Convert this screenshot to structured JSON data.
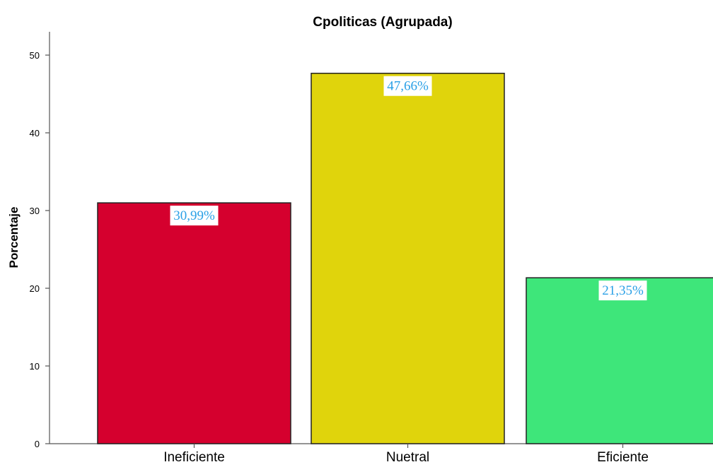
{
  "chart_data": {
    "type": "bar",
    "title": "Cpoliticas (Agrupada)",
    "xlabel": "",
    "ylabel": "Porcentaje",
    "categories": [
      "Ineficiente",
      "Nuetral",
      "Eficiente"
    ],
    "values": [
      30.99,
      47.66,
      21.35
    ],
    "data_labels": [
      "30,99%",
      "47,66%",
      "21,35%"
    ],
    "colors": [
      "#d5002e",
      "#e0d40c",
      "#3ee67a"
    ],
    "ylim": [
      0,
      53
    ],
    "yticks": [
      0,
      10,
      20,
      30,
      40,
      50
    ],
    "grid": false,
    "legend": "none"
  }
}
